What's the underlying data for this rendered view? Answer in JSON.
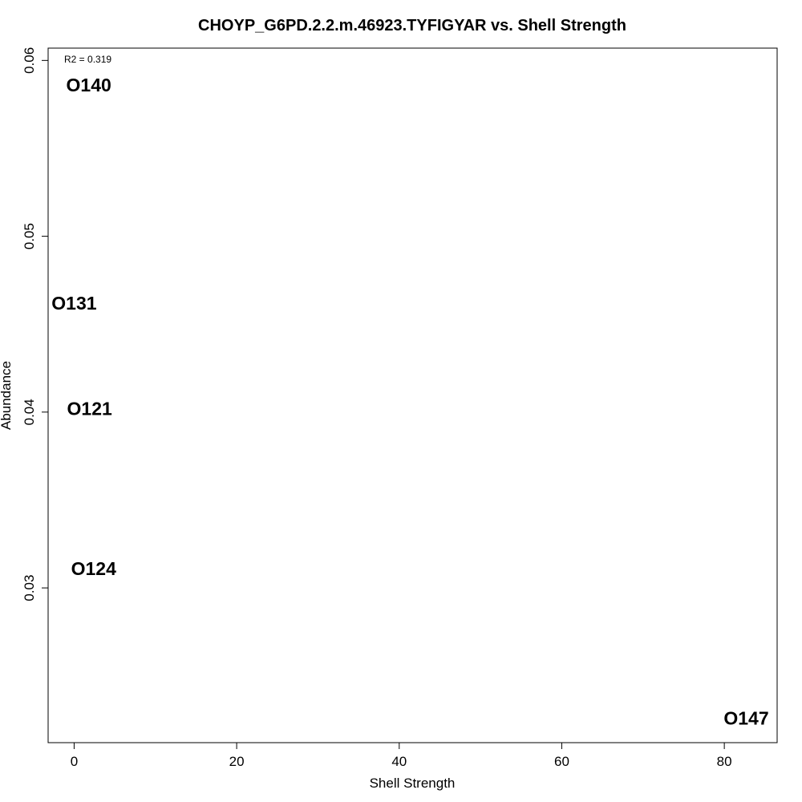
{
  "chart_data": {
    "type": "scatter",
    "title": "CHOYP_G6PD.2.2.m.46923.TYFIGYAR vs. Shell Strength",
    "xlabel": "Shell Strength",
    "ylabel": "Abundance",
    "xlim": [
      -3.2,
      86.5
    ],
    "ylim": [
      0.0212,
      0.0607
    ],
    "xticks": [
      0,
      20,
      40,
      60,
      80
    ],
    "xtick_labels": [
      "0",
      "20",
      "40",
      "60",
      "80"
    ],
    "yticks": [
      0.03,
      0.04,
      0.05,
      0.06
    ],
    "ytick_labels": [
      "0.03",
      "0.04",
      "0.05",
      "0.06"
    ],
    "annotation": "R2 = 0.319",
    "grid": false,
    "points": [
      {
        "label": "O140",
        "x": 1.8,
        "y": 0.0586
      },
      {
        "label": "O131",
        "x": 0.0,
        "y": 0.0462
      },
      {
        "label": "O121",
        "x": 1.9,
        "y": 0.0402
      },
      {
        "label": "O124",
        "x": 2.4,
        "y": 0.0311
      },
      {
        "label": "O147",
        "x": 82.7,
        "y": 0.0226
      }
    ]
  }
}
